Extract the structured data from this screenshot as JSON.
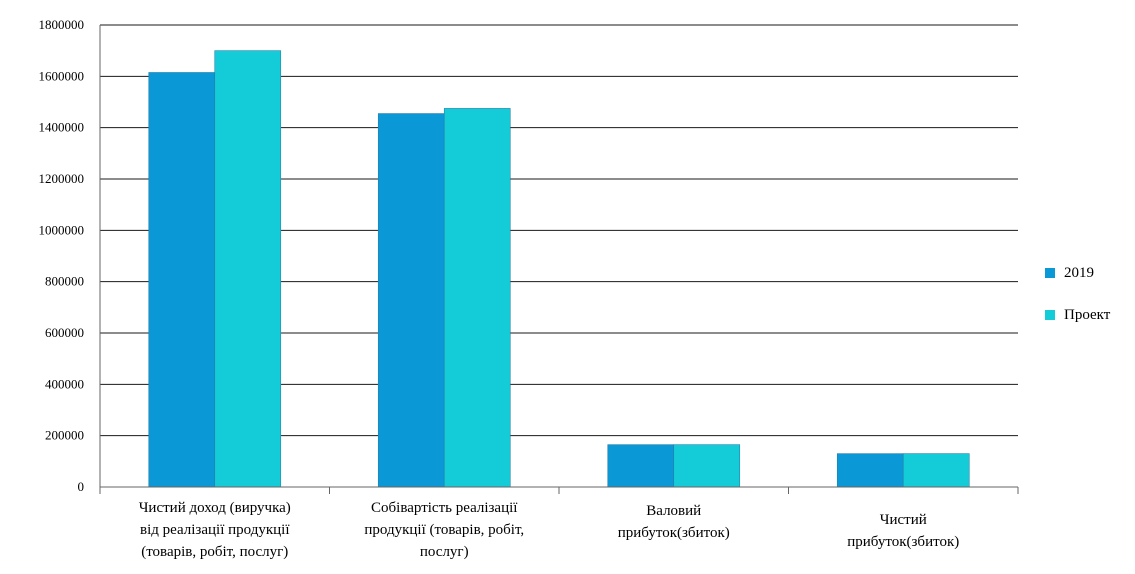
{
  "chart_data": {
    "type": "bar",
    "categories": [
      [
        "Чистий доход (виручка)",
        "від реалізації продукції",
        "(товарів, робіт, послуг)"
      ],
      [
        "Собівартість реалізації",
        "продукції (товарів, робіт,",
        "послуг)"
      ],
      [
        "Валовий",
        "прибуток(збиток)"
      ],
      [
        "Чистий",
        "прибуток(збиток)"
      ]
    ],
    "series": [
      {
        "name": "2019",
        "values": [
          1615000,
          1455000,
          165000,
          130000
        ],
        "color": "#0b98d6"
      },
      {
        "name": "Проект",
        "values": [
          1700000,
          1475000,
          165000,
          130000
        ],
        "color": "#14ccd8"
      }
    ],
    "ylim": [
      0,
      1800000
    ],
    "yticks": [
      "0",
      "200000",
      "400000",
      "600000",
      "800000",
      "1000000",
      "1200000",
      "1400000",
      "1600000",
      "1800000"
    ],
    "grid": true,
    "legend_position": "right"
  }
}
